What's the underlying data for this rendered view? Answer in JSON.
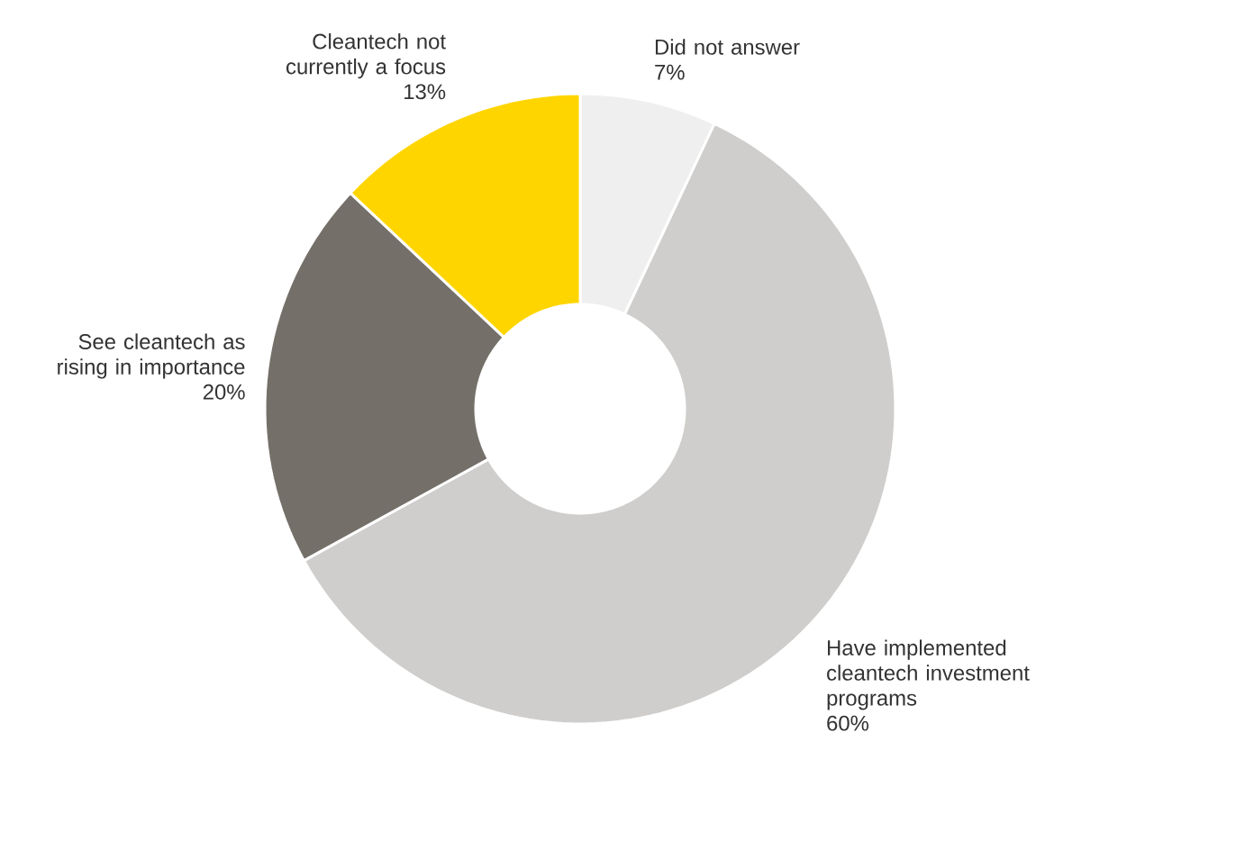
{
  "chart_data": {
    "type": "donut",
    "categories": [
      "Did not answer",
      "Have implemented cleantech investment programs",
      "See cleantech as rising in importance",
      "Cleantech not currently a focus"
    ],
    "values": [
      7,
      60,
      20,
      13
    ],
    "value_labels": [
      "7%",
      "60%",
      "20%",
      "13%"
    ],
    "colors": [
      "#efefef",
      "#cfcecc",
      "#747069",
      "#ffd500"
    ]
  }
}
